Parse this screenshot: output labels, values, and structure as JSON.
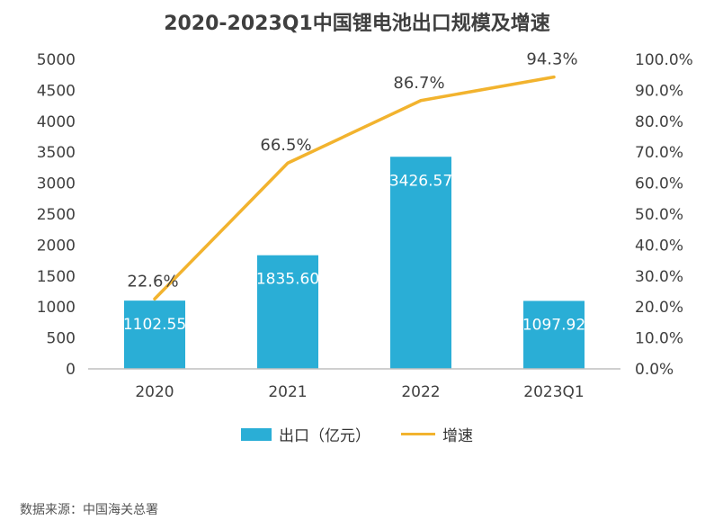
{
  "chart_data": {
    "type": "bar",
    "title": "2020-2023Q1中国锂电池出口规模及增速",
    "categories": [
      "2020",
      "2021",
      "2022",
      "2023Q1"
    ],
    "series": [
      {
        "name": "出口（亿元）",
        "type": "bar",
        "axis": "left",
        "values": [
          1102.55,
          1835.6,
          3426.57,
          1097.92
        ],
        "labels": [
          "1102.55",
          "1835.60",
          "3426.57",
          "1097.92"
        ],
        "color": "#2aaed6"
      },
      {
        "name": "增速",
        "type": "line",
        "axis": "right",
        "values": [
          22.6,
          66.5,
          86.7,
          94.3
        ],
        "labels": [
          "22.6%",
          "66.5%",
          "86.7%",
          "94.3%"
        ],
        "color": "#f2b32e"
      }
    ],
    "ylim_left": [
      0,
      5000
    ],
    "ylim_right": [
      0,
      100
    ],
    "yticks_left": [
      "0",
      "500",
      "1000",
      "1500",
      "2000",
      "2500",
      "3000",
      "3500",
      "4000",
      "4500",
      "5000"
    ],
    "yticks_right": [
      "0.0%",
      "10.0%",
      "20.0%",
      "30.0%",
      "40.0%",
      "50.0%",
      "60.0%",
      "70.0%",
      "80.0%",
      "90.0%",
      "100.0%"
    ],
    "grid": false,
    "legend_position": "bottom"
  },
  "legend": {
    "bar_label": "出口（亿元）",
    "line_label": "增速"
  },
  "source": "数据来源：中国海关总署"
}
